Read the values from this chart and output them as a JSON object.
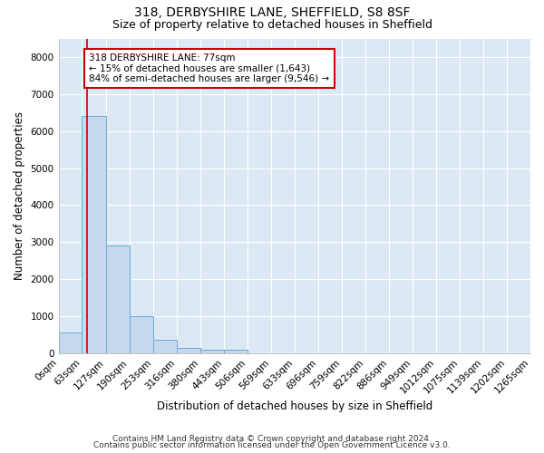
{
  "title1": "318, DERBYSHIRE LANE, SHEFFIELD, S8 8SF",
  "title2": "Size of property relative to detached houses in Sheffield",
  "xlabel": "Distribution of detached houses by size in Sheffield",
  "ylabel": "Number of detached properties",
  "footnote1": "Contains HM Land Registry data © Crown copyright and database right 2024.",
  "footnote2": "Contains public sector information licensed under the Open Government Licence v3.0.",
  "bin_edges": [
    0,
    63,
    127,
    190,
    253,
    316,
    380,
    443,
    506,
    569,
    633,
    696,
    759,
    822,
    886,
    949,
    1012,
    1075,
    1139,
    1202,
    1265
  ],
  "bin_labels": [
    "0sqm",
    "63sqm",
    "127sqm",
    "190sqm",
    "253sqm",
    "316sqm",
    "380sqm",
    "443sqm",
    "506sqm",
    "569sqm",
    "633sqm",
    "696sqm",
    "759sqm",
    "822sqm",
    "886sqm",
    "949sqm",
    "1012sqm",
    "1075sqm",
    "1139sqm",
    "1202sqm",
    "1265sqm"
  ],
  "bar_heights": [
    570,
    6420,
    2910,
    1000,
    360,
    155,
    105,
    95,
    0,
    0,
    0,
    0,
    0,
    0,
    0,
    0,
    0,
    0,
    0,
    0
  ],
  "bar_color": "#c5d8ed",
  "bar_edge_color": "#6aaed6",
  "property_size": 77,
  "vline_color": "#cc0000",
  "annotation_text": "318 DERBYSHIRE LANE: 77sqm\n← 15% of detached houses are smaller (1,643)\n84% of semi-detached houses are larger (9,546) →",
  "annotation_box_color": "#ffffff",
  "annotation_box_edge": "#cc0000",
  "ylim": [
    0,
    8500
  ],
  "yticks": [
    0,
    1000,
    2000,
    3000,
    4000,
    5000,
    6000,
    7000,
    8000
  ],
  "bg_color": "#ffffff",
  "axes_bg_color": "#dce9f5",
  "grid_color": "#ffffff",
  "title_fontsize": 10,
  "subtitle_fontsize": 9,
  "axis_label_fontsize": 8.5,
  "tick_label_fontsize": 7.5,
  "footnote_fontsize": 6.5
}
